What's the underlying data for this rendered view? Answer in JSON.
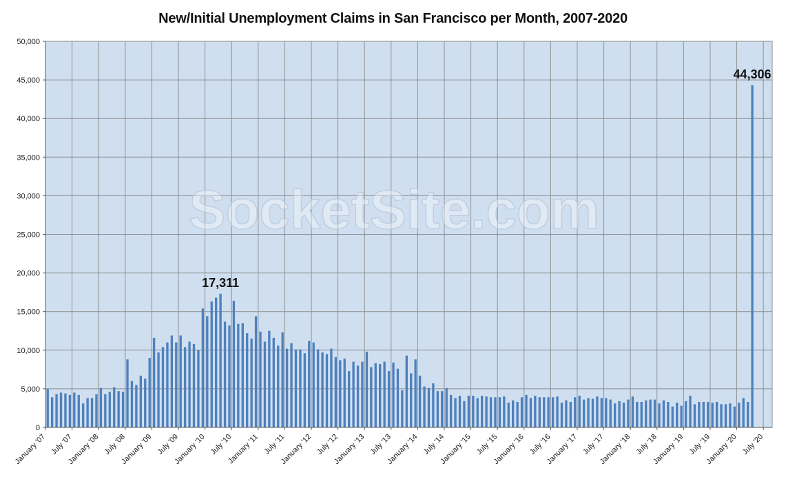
{
  "chart_data": {
    "type": "bar",
    "title": "New/Initial Unemployment Claims in San Francisco per Month, 2007-2020",
    "xlabel": "",
    "ylabel": "",
    "ylim": [
      0,
      50000
    ],
    "y_ticks": [
      "0",
      "5,000",
      "10,000",
      "15,000",
      "20,000",
      "25,000",
      "30,000",
      "35,000",
      "40,000",
      "45,000",
      "50,000"
    ],
    "x_tick_labels": [
      "January '07",
      "July '07",
      "January '08",
      "July '08",
      "January '09",
      "July '09",
      "January '10",
      "July '10",
      "January '11",
      "July '11",
      "January '12",
      "July '12",
      "January '13",
      "July '13",
      "January '14",
      "July '14",
      "January '15",
      "July '15",
      "January '16",
      "July '16",
      "January '17",
      "July '17",
      "January '18",
      "July '18",
      "January '19",
      "July '19",
      "January '20",
      "July '20"
    ],
    "x_start": "January '07",
    "grid": true,
    "bar_color": "#4f81bd",
    "plot_background": "#cfdff0",
    "watermark": "SocketSite.com",
    "annotations": [
      {
        "label": "17,311",
        "x": "April '10",
        "value": 17311
      },
      {
        "label": "44,306",
        "x": "April '20",
        "value": 44306
      }
    ],
    "values": [
      5000,
      3900,
      4300,
      4500,
      4400,
      4200,
      4500,
      4200,
      3100,
      3800,
      3800,
      4300,
      5100,
      4300,
      4600,
      5200,
      4700,
      4600,
      8800,
      6000,
      5500,
      6700,
      6300,
      9000,
      11600,
      9700,
      10400,
      11000,
      11900,
      11000,
      11900,
      10400,
      11100,
      10800,
      10000,
      15400,
      14400,
      16300,
      16800,
      17311,
      13700,
      13200,
      16400,
      13400,
      13500,
      12200,
      11500,
      14400,
      12400,
      11100,
      12500,
      11600,
      10600,
      12300,
      10200,
      10900,
      10100,
      10100,
      9600,
      11200,
      11000,
      10100,
      9700,
      9500,
      10200,
      9100,
      8700,
      8900,
      7300,
      8500,
      8000,
      8500,
      9800,
      7800,
      8300,
      8200,
      8500,
      7300,
      8400,
      7600,
      4800,
      9300,
      7000,
      8800,
      6700,
      5300,
      5100,
      5700,
      4700,
      4700,
      5100,
      4200,
      3800,
      4100,
      3400,
      4100,
      4100,
      3800,
      4100,
      4000,
      3900,
      3900,
      3900,
      4000,
      3200,
      3500,
      3300,
      3900,
      4200,
      3800,
      4100,
      3900,
      3900,
      3900,
      3900,
      4000,
      3200,
      3500,
      3300,
      3900,
      4100,
      3600,
      3800,
      3700,
      4000,
      3800,
      3800,
      3600,
      3100,
      3400,
      3200,
      3600,
      4000,
      3300,
      3300,
      3500,
      3600,
      3600,
      3100,
      3500,
      3300,
      2700,
      3200,
      2800,
      3400,
      4100,
      3000,
      3300,
      3300,
      3300,
      3200,
      3300,
      3000,
      3000,
      3100,
      2700,
      3200,
      3800,
      3300,
      44306
    ]
  }
}
